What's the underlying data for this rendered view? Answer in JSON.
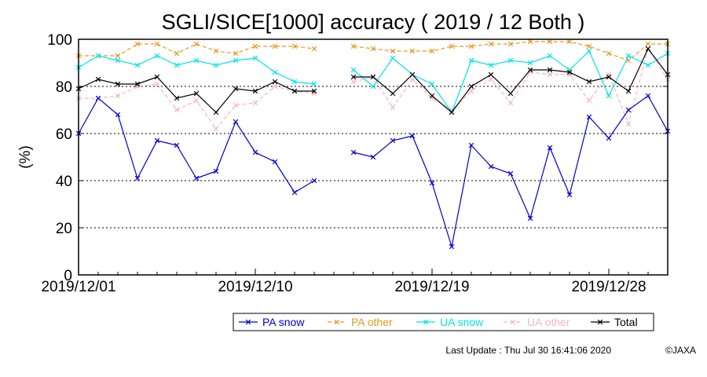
{
  "chart_data": {
    "type": "line",
    "title": "SGLI/SICE[1000] accuracy ( 2019 / 12 Both )",
    "ylabel": "(%)",
    "xlabel": "",
    "ylim": [
      0,
      100
    ],
    "yticks": [
      0,
      20,
      40,
      60,
      80,
      100
    ],
    "xlim": [
      "2019/12/01",
      "2019/12/31"
    ],
    "xticks": [
      "2019/12/01",
      "2019/12/10",
      "2019/12/19",
      "2019/12/28"
    ],
    "grid": "horizontal dashed at 20, 40, 60, 80",
    "legend_position": "bottom-right",
    "x": [
      "2019/12/01",
      "2019/12/02",
      "2019/12/03",
      "2019/12/04",
      "2019/12/05",
      "2019/12/06",
      "2019/12/07",
      "2019/12/08",
      "2019/12/09",
      "2019/12/10",
      "2019/12/11",
      "2019/12/12",
      "2019/12/13",
      "2019/12/14",
      "2019/12/15",
      "2019/12/16",
      "2019/12/17",
      "2019/12/18",
      "2019/12/19",
      "2019/12/20",
      "2019/12/21",
      "2019/12/22",
      "2019/12/23",
      "2019/12/24",
      "2019/12/25",
      "2019/12/26",
      "2019/12/27",
      "2019/12/28",
      "2019/12/29",
      "2019/12/30",
      "2019/12/31"
    ],
    "series": [
      {
        "name": "PA snow",
        "color": "#0000cc",
        "values": [
          60,
          75,
          68,
          41,
          57,
          55,
          41,
          44,
          65,
          52,
          48,
          35,
          40,
          null,
          52,
          50,
          57,
          59,
          39,
          12,
          55,
          46,
          43,
          24,
          54,
          34,
          67,
          58,
          70,
          76,
          61
        ]
      },
      {
        "name": "PA other",
        "color": "#e69a1e",
        "values": [
          93,
          93,
          93,
          98,
          98,
          94,
          98,
          95,
          94,
          97,
          97,
          97,
          96,
          null,
          97,
          96,
          95,
          95,
          95,
          97,
          97,
          98,
          98,
          99,
          99,
          99,
          97,
          94,
          91,
          98,
          98
        ]
      },
      {
        "name": "UA snow",
        "color": "#00e5e5",
        "values": [
          88,
          93,
          91,
          89,
          93,
          89,
          91,
          89,
          91,
          92,
          86,
          82,
          81,
          null,
          87,
          80,
          92,
          85,
          81,
          69,
          91,
          89,
          91,
          90,
          93,
          87,
          95,
          76,
          93,
          89,
          94
        ]
      },
      {
        "name": "UA other",
        "color": "#f4b6c2",
        "values": [
          75,
          75,
          76,
          80,
          81,
          70,
          74,
          62,
          72,
          73,
          80,
          78,
          77,
          null,
          82,
          84,
          71,
          83,
          75,
          70,
          78,
          83,
          73,
          86,
          85,
          85,
          74,
          85,
          64,
          96,
          83
        ]
      },
      {
        "name": "Total",
        "color": "#000000",
        "values": [
          79,
          83,
          81,
          81,
          84,
          75,
          77,
          69,
          79,
          78,
          82,
          78,
          78,
          null,
          84,
          84,
          77,
          85,
          76,
          69,
          80,
          85,
          77,
          87,
          87,
          86,
          82,
          84,
          78,
          96,
          85
        ]
      }
    ]
  },
  "footer": {
    "last_update": "Last Update : Thu Jul 30 16:41:06 2020",
    "copyright": "©JAXA"
  }
}
